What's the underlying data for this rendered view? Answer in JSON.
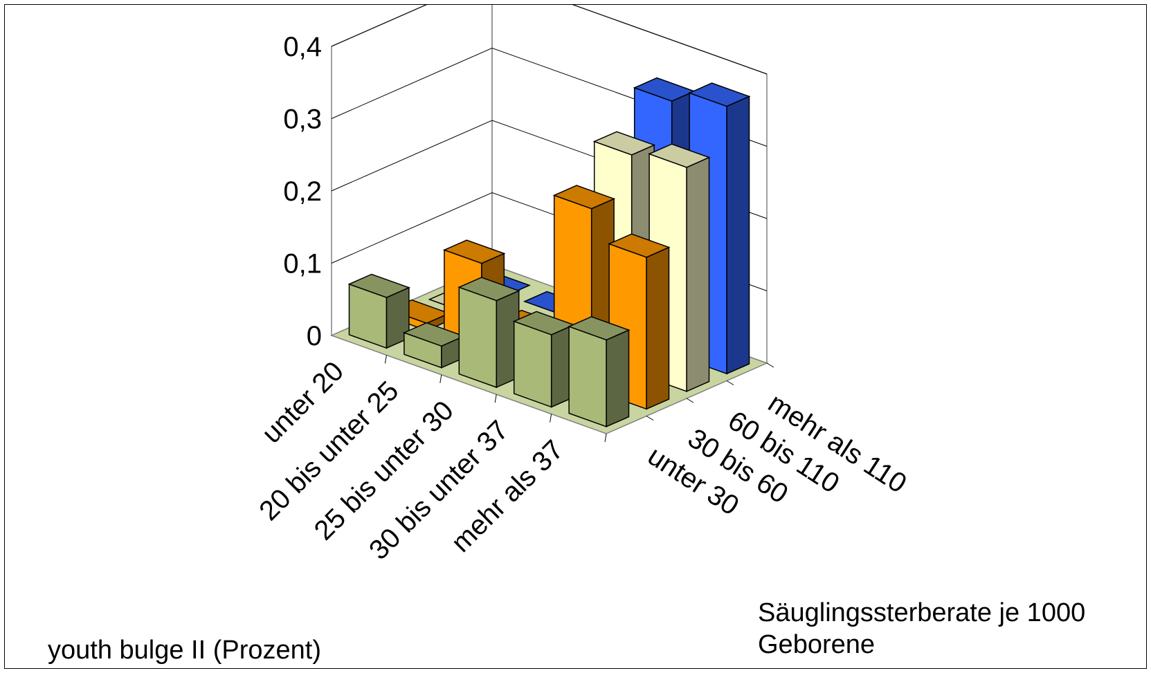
{
  "chart_data": {
    "type": "bar",
    "subtype": "3d-column",
    "title": "",
    "ylabel": "youth bulge II (Prozent)",
    "zlabel": "Säuglingssterberate je 1000 Geborene",
    "ylim": [
      0,
      0.4
    ],
    "yticks": [
      "0",
      "0,1",
      "0,2",
      "0,3",
      "0,4"
    ],
    "yticks_values": [
      0,
      0.1,
      0.2,
      0.3,
      0.4
    ],
    "categories": [
      "unter 20",
      "20 bis unter 25",
      "25 bis unter 30",
      "30 bis unter 37",
      "mehr als 37"
    ],
    "series": [
      {
        "name": "unter 30",
        "values": [
          0.07,
          0.03,
          0.12,
          0.1,
          0.12
        ],
        "color": "#A9B978"
      },
      {
        "name": "30 bis 60",
        "values": [
          0.01,
          0.12,
          0.05,
          0.25,
          0.21
        ],
        "color": "#FF9900"
      },
      {
        "name": "60 bis 110",
        "values": [
          0.0,
          0.0,
          0.0,
          0.3,
          0.31
        ],
        "color": "#FFFFCC"
      },
      {
        "name": "mehr als 110",
        "values": [
          0.0,
          0.0,
          0.01,
          0.35,
          0.37
        ],
        "color": "#3366FF"
      }
    ],
    "grid": true,
    "floor_color": "#C9D5A0"
  }
}
